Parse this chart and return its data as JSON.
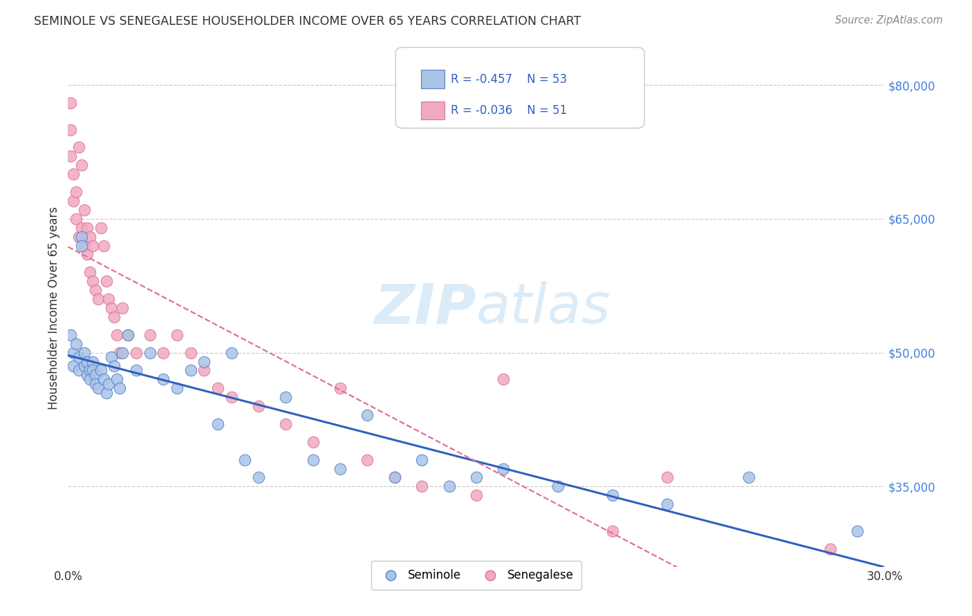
{
  "title": "SEMINOLE VS SENEGALESE HOUSEHOLDER INCOME OVER 65 YEARS CORRELATION CHART",
  "source": "Source: ZipAtlas.com",
  "ylabel": "Householder Income Over 65 years",
  "x_min": 0.0,
  "x_max": 0.3,
  "y_min": 26000,
  "y_max": 84000,
  "yticks": [
    35000,
    50000,
    65000,
    80000
  ],
  "ytick_labels": [
    "$35,000",
    "$50,000",
    "$65,000",
    "$80,000"
  ],
  "xticks": [
    0.0,
    0.05,
    0.1,
    0.15,
    0.2,
    0.25,
    0.3
  ],
  "xtick_labels": [
    "0.0%",
    "",
    "",
    "",
    "",
    "",
    "30.0%"
  ],
  "seminole_R": -0.457,
  "seminole_N": 53,
  "senegalese_R": -0.036,
  "senegalese_N": 51,
  "seminole_color": "#aac4e8",
  "senegalese_color": "#f0aac0",
  "seminole_edge_color": "#5580c8",
  "senegalese_edge_color": "#e07090",
  "seminole_line_color": "#3060c0",
  "senegalese_line_color": "#e07090",
  "background_color": "#ffffff",
  "grid_color": "#cccccc",
  "watermark_color": "#d8eaf8",
  "title_color": "#333333",
  "axis_label_color": "#333333",
  "ytick_color": "#4080e0",
  "legend_text_color": "#3060c0",
  "seminole_x": [
    0.001,
    0.002,
    0.002,
    0.003,
    0.004,
    0.004,
    0.005,
    0.005,
    0.006,
    0.006,
    0.007,
    0.007,
    0.008,
    0.008,
    0.009,
    0.009,
    0.01,
    0.01,
    0.011,
    0.012,
    0.013,
    0.014,
    0.015,
    0.016,
    0.017,
    0.018,
    0.019,
    0.02,
    0.022,
    0.025,
    0.03,
    0.035,
    0.04,
    0.045,
    0.05,
    0.055,
    0.06,
    0.065,
    0.07,
    0.08,
    0.09,
    0.1,
    0.11,
    0.12,
    0.13,
    0.14,
    0.15,
    0.16,
    0.18,
    0.2,
    0.22,
    0.25,
    0.29
  ],
  "seminole_y": [
    52000,
    50000,
    48500,
    51000,
    49500,
    48000,
    63000,
    62000,
    50000,
    48500,
    49000,
    47500,
    48000,
    47000,
    49000,
    48000,
    47500,
    46500,
    46000,
    48000,
    47000,
    45500,
    46500,
    49500,
    48500,
    47000,
    46000,
    50000,
    52000,
    48000,
    50000,
    47000,
    46000,
    48000,
    49000,
    42000,
    50000,
    38000,
    36000,
    45000,
    38000,
    37000,
    43000,
    36000,
    38000,
    35000,
    36000,
    37000,
    35000,
    34000,
    33000,
    36000,
    30000
  ],
  "senegalese_x": [
    0.001,
    0.001,
    0.001,
    0.002,
    0.002,
    0.003,
    0.003,
    0.004,
    0.004,
    0.005,
    0.005,
    0.006,
    0.006,
    0.007,
    0.007,
    0.008,
    0.008,
    0.009,
    0.009,
    0.01,
    0.011,
    0.012,
    0.013,
    0.014,
    0.015,
    0.016,
    0.017,
    0.018,
    0.019,
    0.02,
    0.022,
    0.025,
    0.03,
    0.035,
    0.04,
    0.045,
    0.05,
    0.055,
    0.06,
    0.07,
    0.08,
    0.09,
    0.1,
    0.11,
    0.12,
    0.13,
    0.15,
    0.16,
    0.2,
    0.22,
    0.28
  ],
  "senegalese_y": [
    78000,
    75000,
    72000,
    70000,
    67000,
    68000,
    65000,
    73000,
    63000,
    71000,
    64000,
    66000,
    62000,
    64000,
    61000,
    63000,
    59000,
    62000,
    58000,
    57000,
    56000,
    64000,
    62000,
    58000,
    56000,
    55000,
    54000,
    52000,
    50000,
    55000,
    52000,
    50000,
    52000,
    50000,
    52000,
    50000,
    48000,
    46000,
    45000,
    44000,
    42000,
    40000,
    46000,
    38000,
    36000,
    35000,
    34000,
    47000,
    30000,
    36000,
    28000
  ]
}
